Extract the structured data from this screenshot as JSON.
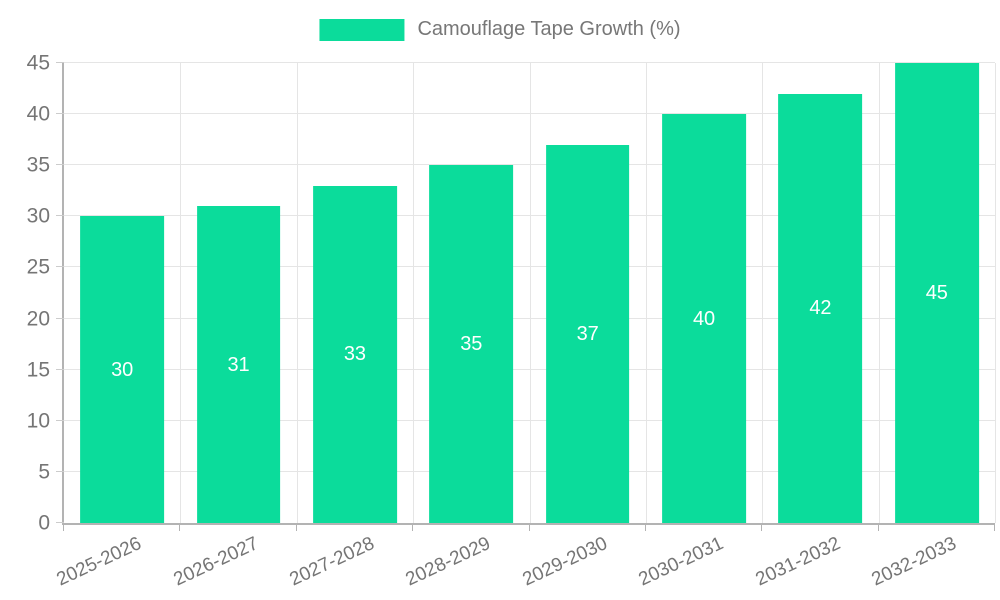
{
  "chart_data": {
    "type": "bar",
    "title": "Camouflage Tape Growth (%)",
    "categories": [
      "2025-2026",
      "2026-2027",
      "2027-2028",
      "2028-2029",
      "2029-2030",
      "2030-2031",
      "2031-2032",
      "2032-2033"
    ],
    "values": [
      30,
      31,
      33,
      35,
      37,
      40,
      42,
      45
    ],
    "xlabel": "",
    "ylabel": "",
    "ylim": [
      0,
      45
    ],
    "yticks": [
      0,
      5,
      10,
      15,
      20,
      25,
      30,
      35,
      40,
      45
    ],
    "grid": true,
    "legend_position": "top-center",
    "bar_color": "#0bdc9b",
    "value_label_color": "#ffffff",
    "axis_text_color": "#757575",
    "legend_text_color": "#777777",
    "grid_color": "#e5e5e5",
    "axis_line_color": "#b3b3b3",
    "background_color": "#ffffff"
  }
}
